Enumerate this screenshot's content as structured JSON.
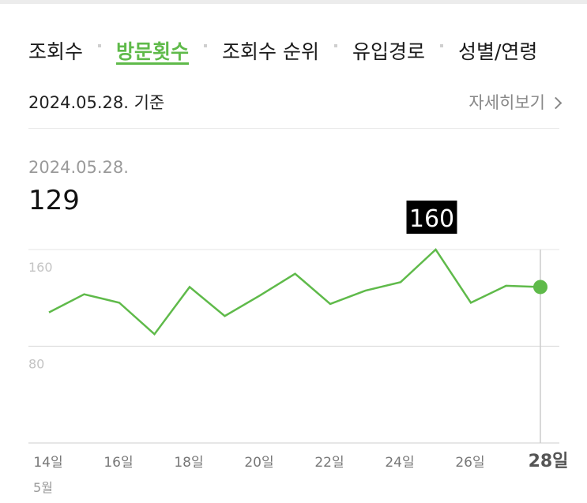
{
  "tabs": [
    {
      "label": "조회수",
      "active": false
    },
    {
      "label": "방문횟수",
      "active": true
    },
    {
      "label": "조회수 순위",
      "active": false
    },
    {
      "label": "유입경로",
      "active": false
    },
    {
      "label": "성별/연령",
      "active": false
    }
  ],
  "basis_date": "2024.05.28. 기준",
  "more_label": "자세히보기",
  "selected": {
    "date": "2024.05.28.",
    "value": "129"
  },
  "colors": {
    "accent": "#5fba4a",
    "grid": "#e0e0e0",
    "tooltip_bg": "#000000"
  },
  "chart_data": {
    "type": "line",
    "x": [
      "14일",
      "15일",
      "16일",
      "17일",
      "18일",
      "19일",
      "20일",
      "21일",
      "22일",
      "23일",
      "24일",
      "25일",
      "26일",
      "27일",
      "28일"
    ],
    "series": [
      {
        "values": [
          108,
          123,
          116,
          90,
          129,
          105,
          122,
          140,
          115,
          126,
          133,
          160,
          116,
          130,
          129
        ]
      }
    ],
    "xticks": [
      "14일",
      "16일",
      "18일",
      "20일",
      "22일",
      "24일",
      "26일",
      "28일"
    ],
    "yticks": [
      {
        "value": 160,
        "label": "160"
      },
      {
        "value": 80,
        "label": "80"
      }
    ],
    "month_label": "5월",
    "max_label": "160",
    "ylim": [
      0,
      160
    ],
    "grid": true,
    "legend": "none"
  }
}
